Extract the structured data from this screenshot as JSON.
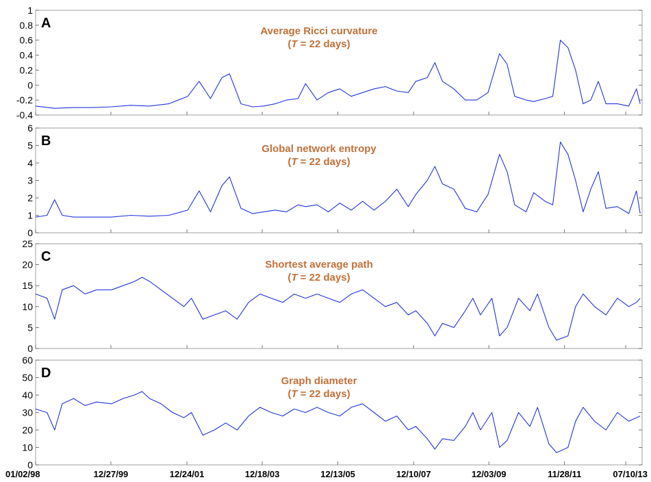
{
  "chart_data": [
    {
      "type": "line",
      "panel": "A",
      "title": "Average Ricci curvature",
      "subtitle_prefix": "(",
      "subtitle_var": "T",
      "subtitle_rest": " = 22 days)",
      "ylim": [
        -0.4,
        1
      ],
      "yticks": [
        -0.4,
        -0.2,
        0,
        0.2,
        0.4,
        0.6,
        0.8,
        1
      ],
      "yticklabels": [
        "-0.4",
        "-0.2",
        "0",
        "0.2",
        "0.4",
        "0.6",
        "0.8",
        "1"
      ],
      "series": [
        {
          "points": [
            [
              1998.0,
              -0.28
            ],
            [
              1998.5,
              -0.31
            ],
            [
              1999.0,
              -0.3
            ],
            [
              1999.5,
              -0.3
            ],
            [
              2000.0,
              -0.29
            ],
            [
              2000.5,
              -0.27
            ],
            [
              2001.0,
              -0.28
            ],
            [
              2001.5,
              -0.25
            ],
            [
              2002.0,
              -0.15
            ],
            [
              2002.3,
              0.05
            ],
            [
              2002.6,
              -0.18
            ],
            [
              2002.9,
              0.1
            ],
            [
              2003.1,
              0.15
            ],
            [
              2003.4,
              -0.25
            ],
            [
              2003.7,
              -0.29
            ],
            [
              2004.0,
              -0.28
            ],
            [
              2004.3,
              -0.25
            ],
            [
              2004.6,
              -0.2
            ],
            [
              2004.9,
              -0.18
            ],
            [
              2005.1,
              0.02
            ],
            [
              2005.4,
              -0.2
            ],
            [
              2005.7,
              -0.1
            ],
            [
              2006.0,
              -0.05
            ],
            [
              2006.3,
              -0.15
            ],
            [
              2006.6,
              -0.1
            ],
            [
              2006.9,
              -0.05
            ],
            [
              2007.2,
              -0.02
            ],
            [
              2007.5,
              -0.08
            ],
            [
              2007.8,
              -0.1
            ],
            [
              2008.0,
              0.05
            ],
            [
              2008.3,
              0.1
            ],
            [
              2008.5,
              0.3
            ],
            [
              2008.7,
              0.05
            ],
            [
              2009.0,
              -0.05
            ],
            [
              2009.3,
              -0.2
            ],
            [
              2009.6,
              -0.2
            ],
            [
              2009.9,
              -0.1
            ],
            [
              2010.2,
              0.42
            ],
            [
              2010.4,
              0.28
            ],
            [
              2010.6,
              -0.15
            ],
            [
              2010.9,
              -0.2
            ],
            [
              2011.1,
              -0.22
            ],
            [
              2011.4,
              -0.18
            ],
            [
              2011.6,
              -0.15
            ],
            [
              2011.8,
              0.6
            ],
            [
              2012.0,
              0.5
            ],
            [
              2012.2,
              0.2
            ],
            [
              2012.4,
              -0.25
            ],
            [
              2012.6,
              -0.2
            ],
            [
              2012.8,
              0.05
            ],
            [
              2013.0,
              -0.25
            ],
            [
              2013.3,
              -0.25
            ],
            [
              2013.6,
              -0.28
            ],
            [
              2013.8,
              -0.05
            ],
            [
              2013.9,
              -0.25
            ]
          ]
        }
      ]
    },
    {
      "type": "line",
      "panel": "B",
      "title": "Global network entropy",
      "subtitle_prefix": "(",
      "subtitle_var": "T",
      "subtitle_rest": " = 22 days)",
      "ylim": [
        0,
        6
      ],
      "yticks": [
        0,
        1,
        2,
        3,
        4,
        5,
        6
      ],
      "yticklabels": [
        "0",
        "1",
        "2",
        "3",
        "4",
        "5",
        "6"
      ],
      "series": [
        {
          "points": [
            [
              1998.0,
              0.9
            ],
            [
              1998.3,
              1.0
            ],
            [
              1998.5,
              1.9
            ],
            [
              1998.7,
              1.0
            ],
            [
              1999.0,
              0.9
            ],
            [
              1999.5,
              0.9
            ],
            [
              2000.0,
              0.9
            ],
            [
              2000.5,
              1.0
            ],
            [
              2001.0,
              0.95
            ],
            [
              2001.5,
              1.0
            ],
            [
              2002.0,
              1.3
            ],
            [
              2002.3,
              2.4
            ],
            [
              2002.6,
              1.2
            ],
            [
              2002.9,
              2.7
            ],
            [
              2003.1,
              3.2
            ],
            [
              2003.4,
              1.4
            ],
            [
              2003.7,
              1.1
            ],
            [
              2004.0,
              1.2
            ],
            [
              2004.3,
              1.3
            ],
            [
              2004.6,
              1.2
            ],
            [
              2004.9,
              1.6
            ],
            [
              2005.1,
              1.5
            ],
            [
              2005.4,
              1.6
            ],
            [
              2005.7,
              1.2
            ],
            [
              2006.0,
              1.7
            ],
            [
              2006.3,
              1.3
            ],
            [
              2006.6,
              1.8
            ],
            [
              2006.9,
              1.3
            ],
            [
              2007.2,
              1.8
            ],
            [
              2007.5,
              2.5
            ],
            [
              2007.8,
              1.5
            ],
            [
              2008.0,
              2.2
            ],
            [
              2008.3,
              3.0
            ],
            [
              2008.5,
              3.8
            ],
            [
              2008.7,
              2.8
            ],
            [
              2009.0,
              2.5
            ],
            [
              2009.3,
              1.4
            ],
            [
              2009.6,
              1.2
            ],
            [
              2009.9,
              2.2
            ],
            [
              2010.2,
              4.5
            ],
            [
              2010.4,
              3.5
            ],
            [
              2010.6,
              1.6
            ],
            [
              2010.9,
              1.2
            ],
            [
              2011.1,
              2.3
            ],
            [
              2011.4,
              1.8
            ],
            [
              2011.6,
              1.6
            ],
            [
              2011.8,
              5.2
            ],
            [
              2012.0,
              4.5
            ],
            [
              2012.2,
              3.0
            ],
            [
              2012.4,
              1.2
            ],
            [
              2012.6,
              2.5
            ],
            [
              2012.8,
              3.5
            ],
            [
              2013.0,
              1.4
            ],
            [
              2013.3,
              1.5
            ],
            [
              2013.6,
              1.1
            ],
            [
              2013.8,
              2.4
            ],
            [
              2013.9,
              1.1
            ]
          ]
        }
      ]
    },
    {
      "type": "line",
      "panel": "C",
      "title": "Shortest average path",
      "subtitle_prefix": "(",
      "subtitle_var": "T",
      "subtitle_rest": " = 22 days)",
      "ylim": [
        0,
        25
      ],
      "yticks": [
        0,
        5,
        10,
        15,
        20,
        25
      ],
      "yticklabels": [
        "0",
        "5",
        "10",
        "15",
        "20",
        "25"
      ],
      "series": [
        {
          "points": [
            [
              1998.0,
              13
            ],
            [
              1998.3,
              12
            ],
            [
              1998.5,
              7
            ],
            [
              1998.7,
              14
            ],
            [
              1999.0,
              15
            ],
            [
              1999.3,
              13
            ],
            [
              1999.6,
              14
            ],
            [
              2000.0,
              14
            ],
            [
              2000.3,
              15
            ],
            [
              2000.6,
              16
            ],
            [
              2000.8,
              17
            ],
            [
              2001.0,
              16
            ],
            [
              2001.3,
              14
            ],
            [
              2001.6,
              12
            ],
            [
              2001.9,
              10
            ],
            [
              2002.1,
              12
            ],
            [
              2002.4,
              7
            ],
            [
              2002.7,
              8
            ],
            [
              2003.0,
              9
            ],
            [
              2003.3,
              7
            ],
            [
              2003.6,
              11
            ],
            [
              2003.9,
              13
            ],
            [
              2004.2,
              12
            ],
            [
              2004.5,
              11
            ],
            [
              2004.8,
              13
            ],
            [
              2005.1,
              12
            ],
            [
              2005.4,
              13
            ],
            [
              2005.7,
              12
            ],
            [
              2006.0,
              11
            ],
            [
              2006.3,
              13
            ],
            [
              2006.6,
              14
            ],
            [
              2006.9,
              12
            ],
            [
              2007.2,
              10
            ],
            [
              2007.5,
              11
            ],
            [
              2007.8,
              8
            ],
            [
              2008.0,
              9
            ],
            [
              2008.3,
              6
            ],
            [
              2008.5,
              3
            ],
            [
              2008.7,
              6
            ],
            [
              2009.0,
              5
            ],
            [
              2009.3,
              9
            ],
            [
              2009.5,
              12
            ],
            [
              2009.7,
              8
            ],
            [
              2010.0,
              12
            ],
            [
              2010.2,
              3
            ],
            [
              2010.4,
              5
            ],
            [
              2010.7,
              12
            ],
            [
              2011.0,
              9
            ],
            [
              2011.2,
              13
            ],
            [
              2011.5,
              5
            ],
            [
              2011.7,
              2
            ],
            [
              2012.0,
              3
            ],
            [
              2012.2,
              10
            ],
            [
              2012.4,
              13
            ],
            [
              2012.7,
              10
            ],
            [
              2013.0,
              8
            ],
            [
              2013.3,
              12
            ],
            [
              2013.6,
              10
            ],
            [
              2013.8,
              11
            ],
            [
              2013.9,
              12
            ]
          ]
        }
      ]
    },
    {
      "type": "line",
      "panel": "D",
      "title": "Graph diameter",
      "subtitle_prefix": "(",
      "subtitle_var": "T",
      "subtitle_rest": " = 22 days)",
      "ylim": [
        0,
        60
      ],
      "yticks": [
        0,
        10,
        20,
        30,
        40,
        50,
        60
      ],
      "yticklabels": [
        "0",
        "10",
        "20",
        "30",
        "40",
        "50",
        "60"
      ],
      "series": [
        {
          "points": [
            [
              1998.0,
              32
            ],
            [
              1998.3,
              30
            ],
            [
              1998.5,
              20
            ],
            [
              1998.7,
              35
            ],
            [
              1999.0,
              38
            ],
            [
              1999.3,
              34
            ],
            [
              1999.6,
              36
            ],
            [
              2000.0,
              35
            ],
            [
              2000.3,
              38
            ],
            [
              2000.6,
              40
            ],
            [
              2000.8,
              42
            ],
            [
              2001.0,
              38
            ],
            [
              2001.3,
              35
            ],
            [
              2001.6,
              30
            ],
            [
              2001.9,
              27
            ],
            [
              2002.1,
              30
            ],
            [
              2002.4,
              17
            ],
            [
              2002.7,
              20
            ],
            [
              2003.0,
              24
            ],
            [
              2003.3,
              20
            ],
            [
              2003.6,
              28
            ],
            [
              2003.9,
              33
            ],
            [
              2004.2,
              30
            ],
            [
              2004.5,
              28
            ],
            [
              2004.8,
              32
            ],
            [
              2005.1,
              30
            ],
            [
              2005.4,
              33
            ],
            [
              2005.7,
              30
            ],
            [
              2006.0,
              28
            ],
            [
              2006.3,
              33
            ],
            [
              2006.6,
              35
            ],
            [
              2006.9,
              30
            ],
            [
              2007.2,
              25
            ],
            [
              2007.5,
              28
            ],
            [
              2007.8,
              20
            ],
            [
              2008.0,
              22
            ],
            [
              2008.3,
              15
            ],
            [
              2008.5,
              9
            ],
            [
              2008.7,
              15
            ],
            [
              2009.0,
              14
            ],
            [
              2009.3,
              22
            ],
            [
              2009.5,
              30
            ],
            [
              2009.7,
              20
            ],
            [
              2010.0,
              30
            ],
            [
              2010.2,
              10
            ],
            [
              2010.4,
              14
            ],
            [
              2010.7,
              30
            ],
            [
              2011.0,
              22
            ],
            [
              2011.2,
              33
            ],
            [
              2011.5,
              12
            ],
            [
              2011.7,
              7
            ],
            [
              2012.0,
              10
            ],
            [
              2012.2,
              25
            ],
            [
              2012.4,
              33
            ],
            [
              2012.7,
              25
            ],
            [
              2013.0,
              20
            ],
            [
              2013.3,
              30
            ],
            [
              2013.6,
              25
            ],
            [
              2013.8,
              27
            ],
            [
              2013.9,
              28
            ]
          ]
        }
      ]
    }
  ],
  "shared_x": {
    "xlim": [
      1998.0,
      2013.95
    ],
    "ticks": [
      {
        "value": 1998.0,
        "label": "01/02/98"
      },
      {
        "value": 1999.98,
        "label": "12/27/99"
      },
      {
        "value": 2001.98,
        "label": "12/24/01"
      },
      {
        "value": 2003.96,
        "label": "12/18/03"
      },
      {
        "value": 2005.95,
        "label": "12/13/05"
      },
      {
        "value": 2007.94,
        "label": "12/10/07"
      },
      {
        "value": 2009.92,
        "label": "12/03/09"
      },
      {
        "value": 2011.91,
        "label": "11/28/11"
      },
      {
        "value": 2013.52,
        "label": "07/10/13"
      }
    ]
  }
}
